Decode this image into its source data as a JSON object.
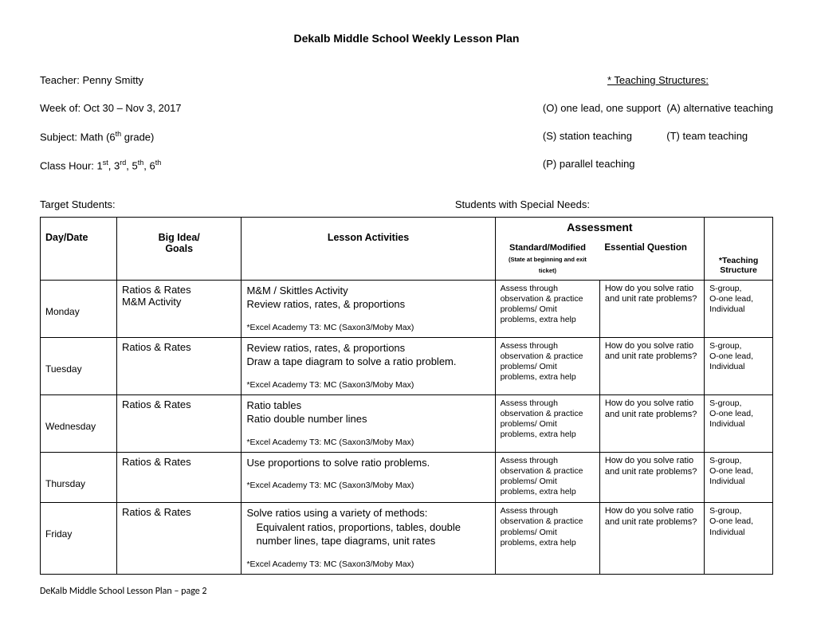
{
  "title": "Dekalb Middle School Weekly Lesson Plan",
  "header": {
    "teacher_label": "Teacher:  Penny Smitty",
    "week_label": "Week of:  Oct 30 – Nov 3, 2017",
    "subject_label": "Subject:  Math (6",
    "subject_sup": "th",
    "subject_tail": " grade)",
    "class_label": "Class Hour:  1",
    "s1": "st",
    "c2": ", 3",
    "s2": "rd",
    "c3": ", 5",
    "s3": "th",
    "c4": ", 6",
    "s4": "th",
    "ts_head": "* Teaching Structures:",
    "ts_line1a": "(O) one lead, one support",
    "ts_line1b": "(A) alternative teaching",
    "ts_line2a": "(S) station teaching",
    "ts_line2b": "(T) team teaching",
    "ts_line3": "(P) parallel teaching",
    "target": "Target Students:",
    "special": "Students with Special Needs:"
  },
  "thead": {
    "day": "Day/Date",
    "goals": "Big Idea/\nGoals",
    "activities": "Lesson Activities",
    "assessment": "Assessment",
    "sm": "Standard/Modified",
    "sm_sub": "(State at beginning and exit ticket)",
    "eq": "Essential Question",
    "ts": "*Teaching\nStructure"
  },
  "rows": [
    {
      "day": "Monday",
      "goals": "Ratios & Rates\nM&M Activity",
      "act_lines": [
        "M&M / Skittles Activity",
        "Review ratios, rates, & proportions"
      ],
      "act_note": "*Excel Academy T3: MC (Saxon3/Moby Max)",
      "sm": "Assess through observation & practice problems/ Omit problems, extra help",
      "eq": "How do you solve ratio and unit rate problems?",
      "ts": "S-group,\nO-one lead,\nIndividual"
    },
    {
      "day": "Tuesday",
      "goals": "Ratios & Rates",
      "act_lines": [
        "Review ratios, rates, & proportions",
        "Draw a tape diagram to solve a ratio problem."
      ],
      "act_note": "*Excel Academy T3: MC (Saxon3/Moby Max)",
      "sm": "Assess through observation & practice problems/ Omit problems, extra help",
      "eq": "How do you solve ratio and unit rate problems?",
      "ts": "S-group,\nO-one lead,\nIndividual"
    },
    {
      "day": "Wednesday",
      "goals": "Ratios & Rates",
      "act_lines": [
        "Ratio tables",
        "Ratio double number lines"
      ],
      "act_note": "*Excel Academy T3: MC (Saxon3/Moby Max)",
      "sm": "Assess through observation & practice problems/ Omit problems, extra help",
      "eq": "How do you solve ratio and unit rate problems?",
      "ts": "S-group,\nO-one lead,\nIndividual"
    },
    {
      "day": "Thursday",
      "goals": "Ratios & Rates",
      "act_lines": [
        "Use proportions to solve ratio problems."
      ],
      "act_note": "*Excel Academy T3: MC (Saxon3/Moby Max)",
      "sm": "Assess through observation & practice problems/ Omit problems, extra help",
      "eq": "How do you solve ratio and unit rate problems?",
      "ts": "S-group,\nO-one lead,\nIndividual"
    },
    {
      "day": "Friday",
      "goals": "Ratios & Rates",
      "act_lines": [
        "Solve ratios using a variety of methods:"
      ],
      "act_indent": "Equivalent ratios, proportions, tables, double number lines, tape diagrams, unit rates",
      "act_note": "*Excel Academy T3: MC (Saxon3/Moby Max)",
      "sm": "Assess through observation & practice problems/ Omit problems, extra help",
      "eq": "How do you solve ratio and unit rate problems?",
      "ts": "S-group,\nO-one lead,\nIndividual"
    }
  ],
  "footer": "DeKalb Middle School Lesson Plan – page 2"
}
